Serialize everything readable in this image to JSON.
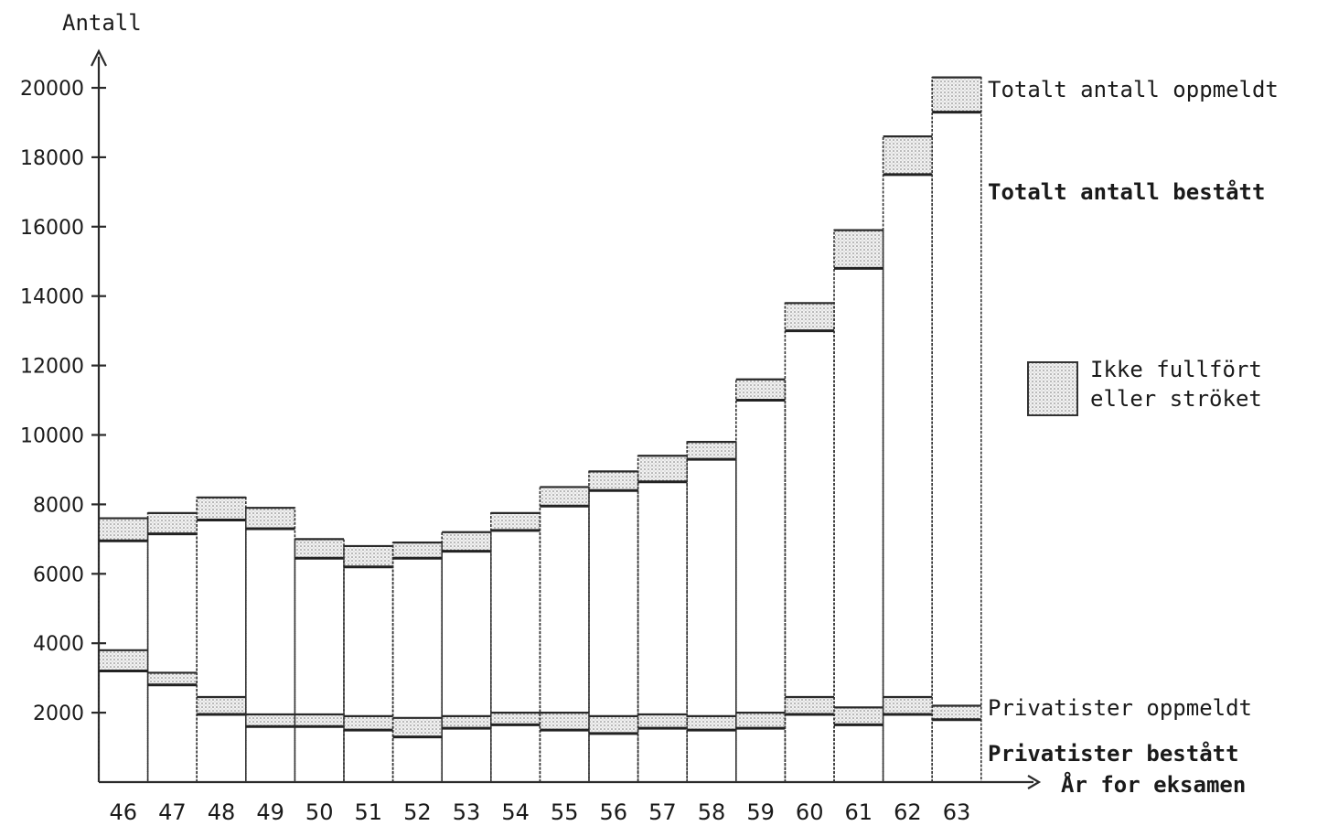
{
  "chart_data": {
    "type": "bar",
    "ylabel": "Antall",
    "xlabel": "År for eksamen",
    "ylim": [
      0,
      20000
    ],
    "yticks": [
      "20000",
      "18000",
      "16000",
      "14000",
      "12000",
      "10000",
      "8000",
      "6000",
      "4000",
      "2000"
    ],
    "categories": [
      "46",
      "47",
      "48",
      "49",
      "50",
      "51",
      "52",
      "53",
      "54",
      "55",
      "56",
      "57",
      "58",
      "59",
      "60",
      "61",
      "62",
      "63"
    ],
    "series": [
      {
        "name": "Totalt antall oppmeldt",
        "values": [
          7600,
          7750,
          8200,
          7900,
          7000,
          6800,
          6900,
          7200,
          7750,
          8500,
          8950,
          9400,
          9800,
          11600,
          13800,
          15900,
          18600,
          20300
        ]
      },
      {
        "name": "Totalt antall bestått",
        "values": [
          6950,
          7150,
          7550,
          7300,
          6450,
          6200,
          6450,
          6650,
          7250,
          7950,
          8400,
          8650,
          9300,
          11000,
          13000,
          14800,
          17500,
          19300
        ]
      },
      {
        "name": "Privatister oppmeldt",
        "values": [
          3800,
          3150,
          2450,
          1950,
          1950,
          1900,
          1850,
          1900,
          2000,
          2000,
          1900,
          1950,
          1900,
          2000,
          2450,
          2150,
          2450,
          2200
        ]
      },
      {
        "name": "Privatister bestått",
        "values": [
          3200,
          2800,
          1950,
          1600,
          1600,
          1500,
          1300,
          1550,
          1650,
          1500,
          1400,
          1550,
          1500,
          1550,
          1950,
          1650,
          1950,
          1800
        ]
      }
    ],
    "legend": {
      "shaded_label_line1": "Ikke fullfört",
      "shaded_label_line2": "eller ströket"
    },
    "grid": false
  }
}
